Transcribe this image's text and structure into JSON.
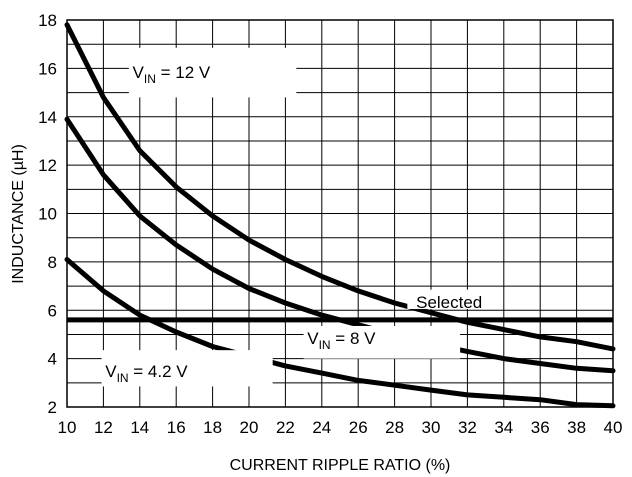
{
  "chart_data": {
    "type": "line",
    "xlabel": "CURRENT RIPPLE RATIO (%)",
    "ylabel": "INDUCTANCE (µH)",
    "xlim": [
      10,
      40
    ],
    "ylim": [
      2,
      18
    ],
    "x_ticks": [
      10,
      12,
      14,
      16,
      18,
      20,
      22,
      24,
      26,
      28,
      30,
      32,
      34,
      36,
      38,
      40
    ],
    "y_ticks": [
      2,
      4,
      6,
      8,
      10,
      12,
      14,
      16,
      18
    ],
    "grid": true,
    "x": [
      10,
      12,
      14,
      16,
      18,
      20,
      22,
      24,
      26,
      28,
      30,
      32,
      34,
      36,
      38,
      40
    ],
    "series": [
      {
        "name": "V_IN = 12 V",
        "values": [
          17.8,
          14.8,
          12.6,
          11.1,
          9.9,
          8.9,
          8.1,
          7.4,
          6.8,
          6.3,
          5.9,
          5.5,
          5.2,
          4.9,
          4.7,
          4.4
        ]
      },
      {
        "name": "V_IN = 8 V",
        "values": [
          13.9,
          11.6,
          9.9,
          8.7,
          7.7,
          6.9,
          6.3,
          5.8,
          5.4,
          5.0,
          4.6,
          4.3,
          4.0,
          3.8,
          3.6,
          3.5
        ]
      },
      {
        "name": "V_IN = 4.2 V",
        "values": [
          8.1,
          6.8,
          5.8,
          5.1,
          4.5,
          4.1,
          3.7,
          3.4,
          3.1,
          2.9,
          2.7,
          2.5,
          2.4,
          2.3,
          2.1,
          2.05
        ]
      }
    ],
    "reference_lines": [
      {
        "label": "Selected",
        "y": 5.6
      }
    ],
    "annotations": [
      {
        "base": "V",
        "sub": "IN",
        "rest": " = 12 V"
      },
      {
        "base": "V",
        "sub": "IN",
        "rest": " = 8 V"
      },
      {
        "base": "V",
        "sub": "IN",
        "rest": " = 4.2 V"
      }
    ]
  }
}
